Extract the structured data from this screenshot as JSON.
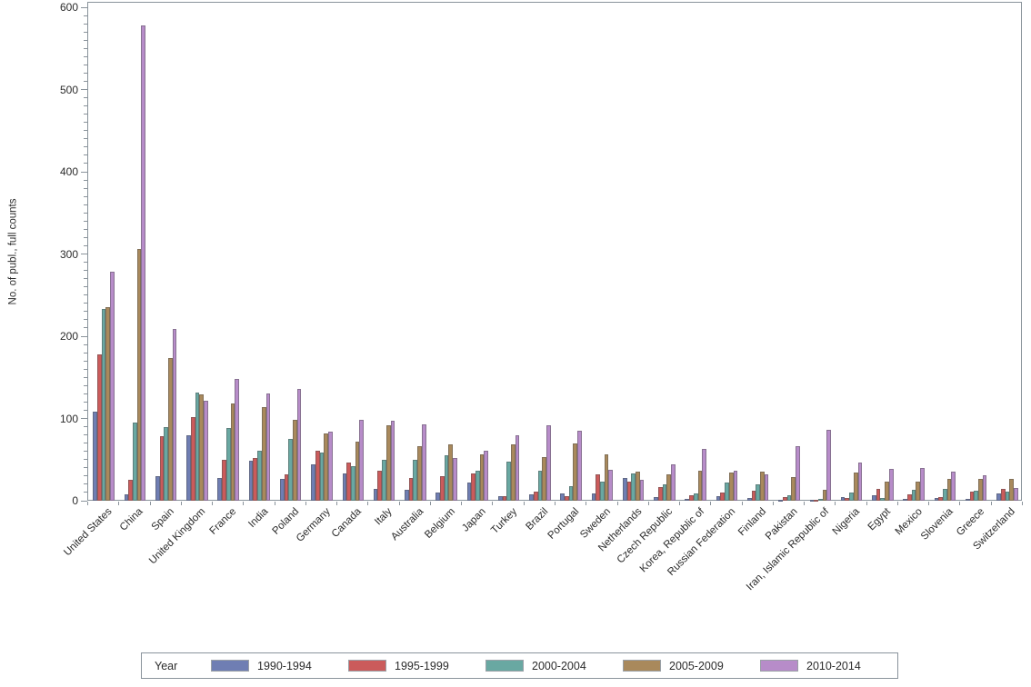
{
  "chart_data": {
    "type": "bar",
    "title": "",
    "xlabel": "",
    "ylabel": "No. of publ., full counts",
    "ylim": [
      0,
      600
    ],
    "y_major_ticks": [
      0,
      100,
      200,
      300,
      400,
      500,
      600
    ],
    "y_minor_tick_interval": 10,
    "grid": false,
    "legend_position": "bottom",
    "legend_title": "Year",
    "axis_color": "#8a939b",
    "categories": [
      "United States",
      "China",
      "Spain",
      "United Kingdom",
      "France",
      "India",
      "Poland",
      "Germany",
      "Canada",
      "Italy",
      "Australia",
      "Belgium",
      "Japan",
      "Turkey",
      "Brazil",
      "Portugal",
      "Sweden",
      "Netherlands",
      "Czech Republic",
      "Korea, Republic of",
      "Russian Federation",
      "Finland",
      "Pakistan",
      "Iran, Islamic Republic of",
      "Nigeria",
      "Egypt",
      "Mexico",
      "Slovenia",
      "Greece",
      "Switzerland"
    ],
    "series": [
      {
        "name": "1990-1994",
        "color": "#6F7EB3",
        "values": [
          108,
          8,
          30,
          80,
          28,
          49,
          27,
          44,
          33,
          14,
          13,
          10,
          22,
          6,
          8,
          9,
          9,
          28,
          4,
          2,
          5,
          3,
          1,
          1,
          4,
          7,
          2,
          3,
          2,
          9
        ]
      },
      {
        "name": "1995-1999",
        "color": "#CB5B5B",
        "values": [
          178,
          25,
          78,
          102,
          50,
          52,
          32,
          61,
          46,
          36,
          28,
          30,
          33,
          5,
          11,
          5,
          32,
          23,
          17,
          7,
          10,
          12,
          4,
          1,
          3,
          14,
          8,
          4,
          11,
          14
        ]
      },
      {
        "name": "2000-2004",
        "color": "#69A8A2",
        "values": [
          233,
          95,
          89,
          131,
          88,
          61,
          75,
          59,
          42,
          50,
          50,
          55,
          36,
          48,
          37,
          18,
          23,
          33,
          20,
          9,
          22,
          20,
          7,
          2,
          10,
          3,
          13,
          14,
          12,
          11
        ]
      },
      {
        "name": "2005-2009",
        "color": "#A9895C",
        "values": [
          235,
          306,
          173,
          129,
          118,
          114,
          98,
          82,
          72,
          92,
          66,
          69,
          56,
          68,
          53,
          70,
          56,
          35,
          32,
          37,
          34,
          35,
          29,
          13,
          34,
          23,
          23,
          27,
          27,
          27
        ]
      },
      {
        "name": "2010-2014",
        "color": "#B78CC9",
        "values": [
          278,
          578,
          209,
          122,
          148,
          130,
          136,
          84,
          98,
          97,
          93,
          52,
          61,
          80,
          92,
          85,
          38,
          25,
          44,
          63,
          37,
          32,
          66,
          86,
          46,
          39,
          40,
          35,
          31,
          16
        ]
      }
    ]
  }
}
